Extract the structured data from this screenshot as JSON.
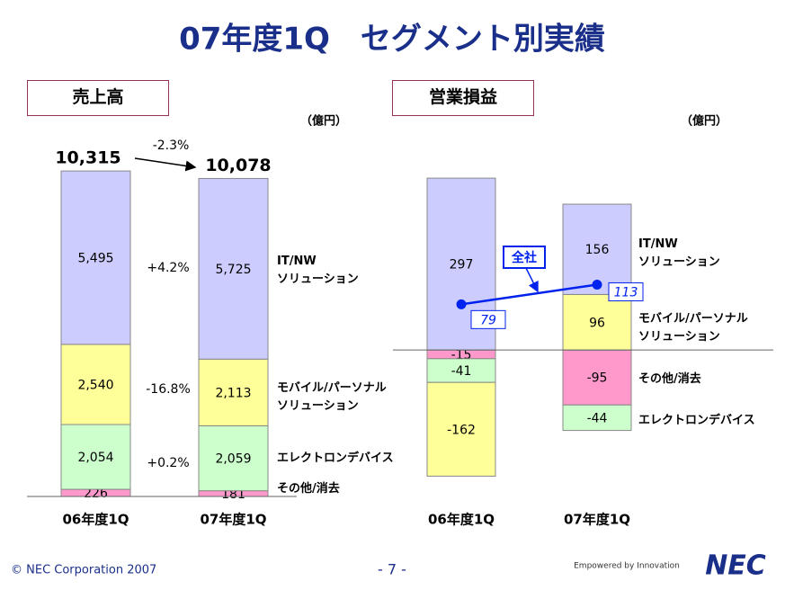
{
  "title": "07年度1Q　セグメント別実績",
  "footer": {
    "copyright": "© NEC Corporation 2007",
    "page": "- 7 -",
    "tagline": "Empowered by Innovation",
    "logo": "NEC"
  },
  "chart_data": [
    {
      "type": "stacked_bar",
      "title": "売上高",
      "unit": "（億円）",
      "categories": [
        "06年度1Q",
        "07年度1Q"
      ],
      "ylim": [
        0,
        12000
      ],
      "series": [
        {
          "name": "その他/消去",
          "color": "#ff99cc",
          "values": [
            226,
            181
          ]
        },
        {
          "name": "エレクトロンデバイス",
          "color": "#ccffcc",
          "values": [
            2054,
            2059
          ],
          "value_labels": [
            "2,054",
            "2,059"
          ],
          "change": "+0.2%"
        },
        {
          "name": "モバイル/パーソナル\nソリューション",
          "color": "#ffff99",
          "values": [
            2540,
            2113
          ],
          "value_labels": [
            "2,540",
            "2,113"
          ],
          "change": "-16.8%"
        },
        {
          "name": "IT/NW\nソリューション",
          "color": "#ccccff",
          "values": [
            5495,
            5725
          ],
          "value_labels": [
            "5,495",
            "5,725"
          ],
          "change": "+4.2%"
        }
      ],
      "totals": {
        "values": [
          10315,
          10078
        ],
        "value_labels": [
          "10,315",
          "10,078"
        ],
        "change": "-2.3%"
      }
    },
    {
      "type": "stacked_bar",
      "title": "営業損益",
      "unit": "（億円）",
      "categories": [
        "06年度1Q",
        "07年度1Q"
      ],
      "ylim": [
        -250,
        350
      ],
      "series": [
        {
          "name": "その他/消去",
          "color": "#ff99cc",
          "values": [
            -15,
            -95
          ]
        },
        {
          "name": "エレクトロンデバイス",
          "color": "#ccffcc",
          "values": [
            -41,
            -44
          ]
        },
        {
          "name": "モバイル/パーソナル\nソリューション",
          "color": "#ffff99",
          "values": [
            -162,
            96
          ]
        },
        {
          "name": "IT/NW\nソリューション",
          "color": "#ccccff",
          "values": [
            297,
            156
          ]
        },
        {
          "name": "全社",
          "type": "line",
          "color": "#0022ee",
          "values": [
            79,
            113
          ]
        }
      ]
    }
  ]
}
